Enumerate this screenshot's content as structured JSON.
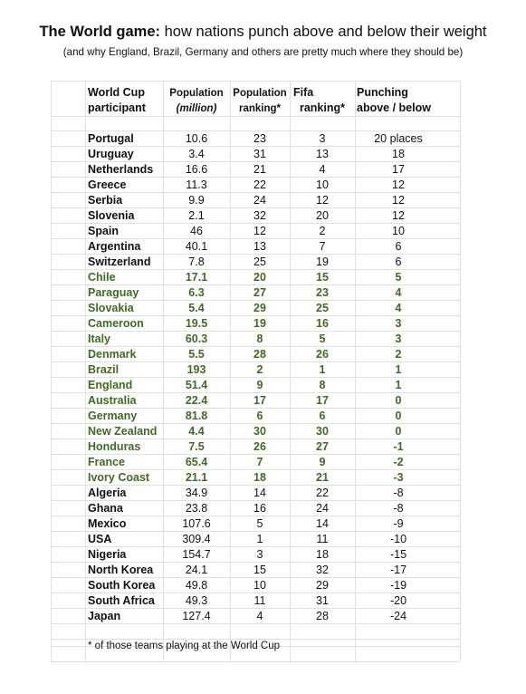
{
  "title_bold": "The World game:",
  "title_rest": " how nations punch above and below their weight",
  "subtitle": "(and why England, Brazil, Germany and others are pretty much where they should be)",
  "headers": {
    "participant_1": "World Cup",
    "participant_2": "participant",
    "population_1": "Population",
    "population_2": "(million)",
    "poprank_1": "Population",
    "poprank_2": "ranking*",
    "fifa_1": "Fifa",
    "fifa_2": "ranking*",
    "punch_1": "Punching",
    "punch_2": "above / below"
  },
  "rows": [
    {
      "country": "Portugal",
      "population": "10.6",
      "pop_rank": "23",
      "fifa_rank": "3",
      "punching": "20 places",
      "highlight": false
    },
    {
      "country": "Uruguay",
      "population": "3.4",
      "pop_rank": "31",
      "fifa_rank": "13",
      "punching": "18",
      "highlight": false
    },
    {
      "country": "Netherlands",
      "population": "16.6",
      "pop_rank": "21",
      "fifa_rank": "4",
      "punching": "17",
      "highlight": false
    },
    {
      "country": "Greece",
      "population": "11.3",
      "pop_rank": "22",
      "fifa_rank": "10",
      "punching": "12",
      "highlight": false
    },
    {
      "country": "Serbia",
      "population": "9.9",
      "pop_rank": "24",
      "fifa_rank": "12",
      "punching": "12",
      "highlight": false
    },
    {
      "country": "Slovenia",
      "population": "2.1",
      "pop_rank": "32",
      "fifa_rank": "20",
      "punching": "12",
      "highlight": false
    },
    {
      "country": "Spain",
      "population": "46",
      "pop_rank": "12",
      "fifa_rank": "2",
      "punching": "10",
      "highlight": false
    },
    {
      "country": "Argentina",
      "population": "40.1",
      "pop_rank": "13",
      "fifa_rank": "7",
      "punching": "6",
      "highlight": false
    },
    {
      "country": "Switzerland",
      "population": "7.8",
      "pop_rank": "25",
      "fifa_rank": "19",
      "punching": "6",
      "highlight": false
    },
    {
      "country": "Chile",
      "population": "17.1",
      "pop_rank": "20",
      "fifa_rank": "15",
      "punching": "5",
      "highlight": true
    },
    {
      "country": "Paraguay",
      "population": "6.3",
      "pop_rank": "27",
      "fifa_rank": "23",
      "punching": "4",
      "highlight": true
    },
    {
      "country": "Slovakia",
      "population": "5.4",
      "pop_rank": "29",
      "fifa_rank": "25",
      "punching": "4",
      "highlight": true
    },
    {
      "country": "Cameroon",
      "population": "19.5",
      "pop_rank": "19",
      "fifa_rank": "16",
      "punching": "3",
      "highlight": true
    },
    {
      "country": "Italy",
      "population": "60.3",
      "pop_rank": "8",
      "fifa_rank": "5",
      "punching": "3",
      "highlight": true
    },
    {
      "country": "Denmark",
      "population": "5.5",
      "pop_rank": "28",
      "fifa_rank": "26",
      "punching": "2",
      "highlight": true
    },
    {
      "country": "Brazil",
      "population": "193",
      "pop_rank": "2",
      "fifa_rank": "1",
      "punching": "1",
      "highlight": true
    },
    {
      "country": "England",
      "population": "51.4",
      "pop_rank": "9",
      "fifa_rank": "8",
      "punching": "1",
      "highlight": true
    },
    {
      "country": "Australia",
      "population": "22.4",
      "pop_rank": "17",
      "fifa_rank": "17",
      "punching": "0",
      "highlight": true
    },
    {
      "country": "Germany",
      "population": "81.8",
      "pop_rank": "6",
      "fifa_rank": "6",
      "punching": "0",
      "highlight": true
    },
    {
      "country": "New Zealand",
      "population": "4.4",
      "pop_rank": "30",
      "fifa_rank": "30",
      "punching": "0",
      "highlight": true
    },
    {
      "country": "Honduras",
      "population": "7.5",
      "pop_rank": "26",
      "fifa_rank": "27",
      "punching": "-1",
      "highlight": true
    },
    {
      "country": "France",
      "population": "65.4",
      "pop_rank": "7",
      "fifa_rank": "9",
      "punching": "-2",
      "highlight": true
    },
    {
      "country": "Ivory Coast",
      "population": "21.1",
      "pop_rank": "18",
      "fifa_rank": "21",
      "punching": "-3",
      "highlight": true
    },
    {
      "country": "Algeria",
      "population": "34.9",
      "pop_rank": "14",
      "fifa_rank": "22",
      "punching": "-8",
      "highlight": false
    },
    {
      "country": "Ghana",
      "population": "23.8",
      "pop_rank": "16",
      "fifa_rank": "24",
      "punching": "-8",
      "highlight": false
    },
    {
      "country": "Mexico",
      "population": "107.6",
      "pop_rank": "5",
      "fifa_rank": "14",
      "punching": "-9",
      "highlight": false
    },
    {
      "country": "USA",
      "population": "309.4",
      "pop_rank": "1",
      "fifa_rank": "11",
      "punching": "-10",
      "highlight": false
    },
    {
      "country": "Nigeria",
      "population": "154.7",
      "pop_rank": "3",
      "fifa_rank": "18",
      "punching": "-15",
      "highlight": false
    },
    {
      "country": "North Korea",
      "population": "24.1",
      "pop_rank": "15",
      "fifa_rank": "32",
      "punching": "-17",
      "highlight": false
    },
    {
      "country": "South Korea",
      "population": "49.8",
      "pop_rank": "10",
      "fifa_rank": "29",
      "punching": "-19",
      "highlight": false
    },
    {
      "country": "South Africa",
      "population": "49.3",
      "pop_rank": "11",
      "fifa_rank": "31",
      "punching": "-20",
      "highlight": false
    },
    {
      "country": "Japan",
      "population": "127.4",
      "pop_rank": "4",
      "fifa_rank": "28",
      "punching": "-24",
      "highlight": false
    }
  ],
  "footnote": "* of those teams playing at the World Cup",
  "colors": {
    "highlight_text": "#3f6b22",
    "grid": "#e0e0e0"
  }
}
